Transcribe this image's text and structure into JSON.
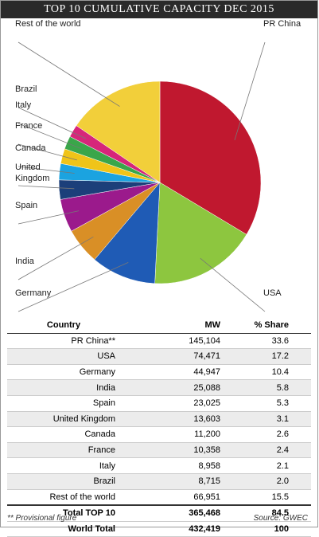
{
  "chart_data": {
    "type": "pie",
    "title": "TOP 10 CUMULATIVE CAPACITY DEC 2015",
    "categories": [
      "PR China",
      "USA",
      "Germany",
      "India",
      "Spain",
      "United Kingdom",
      "Canada",
      "France",
      "Italy",
      "Brazil",
      "Rest of the world"
    ],
    "values": [
      33.6,
      17.2,
      10.4,
      5.8,
      5.3,
      3.1,
      2.6,
      2.4,
      2.1,
      2.0,
      15.5
    ],
    "colors": [
      "#c0182f",
      "#8dc63f",
      "#1f5bb5",
      "#d98f26",
      "#9b1a8c",
      "#1c3f7a",
      "#1ba3e0",
      "#f0c419",
      "#3aa64a",
      "#d6267a",
      "#f2cf3a"
    ]
  },
  "table": {
    "header": [
      "Country",
      "MW",
      "% Share"
    ],
    "rows": [
      [
        "PR China**",
        "145,104",
        "33.6"
      ],
      [
        "USA",
        "74,471",
        "17.2"
      ],
      [
        "Germany",
        "44,947",
        "10.4"
      ],
      [
        "India",
        "25,088",
        "5.8"
      ],
      [
        "Spain",
        "23,025",
        "5.3"
      ],
      [
        "United Kingdom",
        "13,603",
        "3.1"
      ],
      [
        "Canada",
        "11,200",
        "2.6"
      ],
      [
        "France",
        "10,358",
        "2.4"
      ],
      [
        "Italy",
        "8,958",
        "2.1"
      ],
      [
        "Brazil",
        "8,715",
        "2.0"
      ],
      [
        "Rest of the world",
        "66,951",
        "15.5"
      ]
    ],
    "totals": [
      [
        "Total TOP 10",
        "365,468",
        "84.5"
      ],
      [
        "World Total",
        "432,419",
        "100"
      ]
    ]
  },
  "footer": {
    "note": "** Provisional figure",
    "source": "Source: GWEC"
  }
}
